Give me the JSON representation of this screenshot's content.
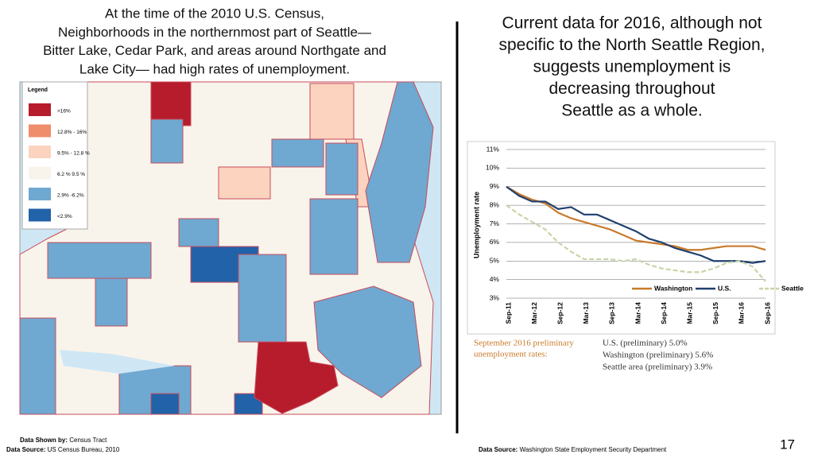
{
  "left_text": {
    "lines": [
      "At the time of the 2010 U.S. Census,",
      "Neighborhoods in the northernmost part of Seattle—",
      "Bitter Lake, Cedar Park, and areas around Northgate and",
      "Lake City— had high rates of unemployment."
    ]
  },
  "right_text": {
    "lines": [
      "Current data for 2016, although not",
      "specific to the North Seattle Region,",
      "suggests unemployment is",
      "decreasing throughout",
      "Seattle as a whole."
    ]
  },
  "map_legend": {
    "title": "Legend",
    "items": [
      {
        "label": ">16%",
        "color": "#b71c2c"
      },
      {
        "label": "12.8% - 16%",
        "color": "#ef8e6a"
      },
      {
        "label": "9.5% - 12.8 %",
        "color": "#fcd3bf"
      },
      {
        "label": "6.2 % 9.5 %",
        "color": "#f8f4ec"
      },
      {
        "label": "2.9% -6.2%",
        "color": "#6fa8d1"
      },
      {
        "label": "<2.9%",
        "color": "#2262a8"
      }
    ]
  },
  "chart": {
    "type": "line",
    "y_label": "Unemployment rate",
    "categories": [
      "Sep-11",
      null,
      "Mar-12",
      null,
      "Sep-12",
      null,
      "Mar-13",
      null,
      "Sep-13",
      null,
      "Mar-14",
      null,
      "Sep-14",
      null,
      "Mar-15",
      null,
      "Sep-15",
      null,
      "Mar-16",
      null,
      "Sep-16"
    ],
    "ylim": [
      3,
      11
    ],
    "yticks": [
      {
        "value": 3,
        "label": "3%"
      },
      {
        "value": 4,
        "label": "4%"
      },
      {
        "value": 5,
        "label": "5%"
      },
      {
        "value": 6,
        "label": "6%"
      },
      {
        "value": 7,
        "label": "7%"
      },
      {
        "value": 8,
        "label": "8%"
      },
      {
        "value": 9,
        "label": "9%"
      },
      {
        "value": 10,
        "label": "10%"
      },
      {
        "value": 11,
        "label": "11%"
      }
    ],
    "grid": true,
    "series": [
      {
        "name": "Washington",
        "color": "#c87a2a",
        "dash": false,
        "values": [
          9.0,
          8.6,
          8.3,
          8.1,
          7.6,
          7.3,
          7.1,
          6.9,
          6.7,
          6.4,
          6.1,
          6.0,
          5.9,
          5.8,
          5.6,
          5.6,
          5.7,
          5.8,
          5.8,
          5.8,
          5.6
        ]
      },
      {
        "name": "U.S.",
        "color": "#1f3f6e",
        "dash": false,
        "values": [
          9.0,
          8.5,
          8.2,
          8.2,
          7.8,
          7.9,
          7.5,
          7.5,
          7.2,
          6.9,
          6.6,
          6.2,
          6.0,
          5.7,
          5.5,
          5.3,
          5.0,
          5.0,
          5.0,
          4.9,
          5.0
        ]
      },
      {
        "name": "Seattle",
        "color": "#c6d5a6",
        "dash": true,
        "values": [
          8.0,
          7.5,
          7.1,
          6.7,
          6.0,
          5.5,
          5.1,
          5.1,
          5.1,
          5.0,
          5.1,
          4.8,
          4.6,
          4.5,
          4.4,
          4.4,
          4.6,
          4.9,
          5.0,
          4.7,
          3.9
        ]
      }
    ],
    "note_title": [
      "September 2016 preliminary",
      "unemployment rates:"
    ],
    "note_lines": [
      "U.S. (preliminary) 5.0%",
      "Washington (preliminary) 5.6%",
      "Seattle area (preliminary) 3.9%"
    ]
  },
  "footer": {
    "shown_by_label": "Data Shown by:",
    "shown_by": "Census Tract",
    "source_label": "Data Source:",
    "source": "US Census Bureau, 2010",
    "source2_label": "Data Source:",
    "source2": "Washington State Employment Security Department",
    "page": "17"
  }
}
